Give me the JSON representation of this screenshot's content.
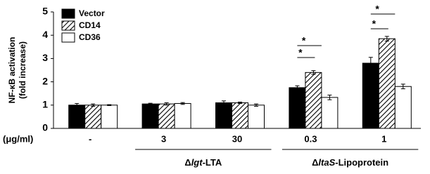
{
  "chart_data": {
    "type": "bar",
    "ylabel": [
      "NF-κB activation",
      "(fold increase)"
    ],
    "x_row_label": "(μg/ml)",
    "categories": [
      "-",
      "3",
      "30",
      "0.3",
      "1"
    ],
    "series": [
      {
        "name": "Vector",
        "color": "#000000",
        "values": [
          1.0,
          1.05,
          1.1,
          1.75,
          2.8
        ],
        "errors": [
          0.07,
          0.03,
          0.08,
          0.08,
          0.25
        ]
      },
      {
        "name": "CD14",
        "color": "#ffffff",
        "pattern": "hatch",
        "values": [
          1.0,
          1.05,
          1.1,
          2.4,
          3.85
        ],
        "errors": [
          0.05,
          0.05,
          0.03,
          0.08,
          0.1
        ]
      },
      {
        "name": "CD36",
        "color": "#ffffff",
        "values": [
          1.0,
          1.07,
          1.0,
          1.33,
          1.8
        ],
        "errors": [
          0.02,
          0.04,
          0.05,
          0.1,
          0.1
        ]
      }
    ],
    "ylim": [
      0,
      5
    ],
    "yticks": [
      0,
      1,
      2,
      3,
      4,
      5
    ],
    "legend": "upper left",
    "groups": [
      {
        "label": [
          {
            "text": "Δ"
          },
          {
            "text": "lgt",
            "italic": true
          },
          {
            "text": "-LTA"
          }
        ],
        "span": [
          1,
          2
        ]
      },
      {
        "label": [
          {
            "text": "Δ"
          },
          {
            "text": "ltaS",
            "italic": true
          },
          {
            "text": "-Lipoprotein"
          }
        ],
        "span": [
          3,
          4
        ]
      }
    ],
    "annotations": [
      {
        "text": "*",
        "category": 3,
        "series": [
          0,
          1
        ]
      },
      {
        "text": "*",
        "category": 3,
        "series": [
          0,
          2
        ]
      },
      {
        "text": "*",
        "category": 4,
        "series": [
          0,
          1
        ]
      },
      {
        "text": "*",
        "category": 4,
        "series": [
          0,
          2
        ]
      }
    ]
  }
}
